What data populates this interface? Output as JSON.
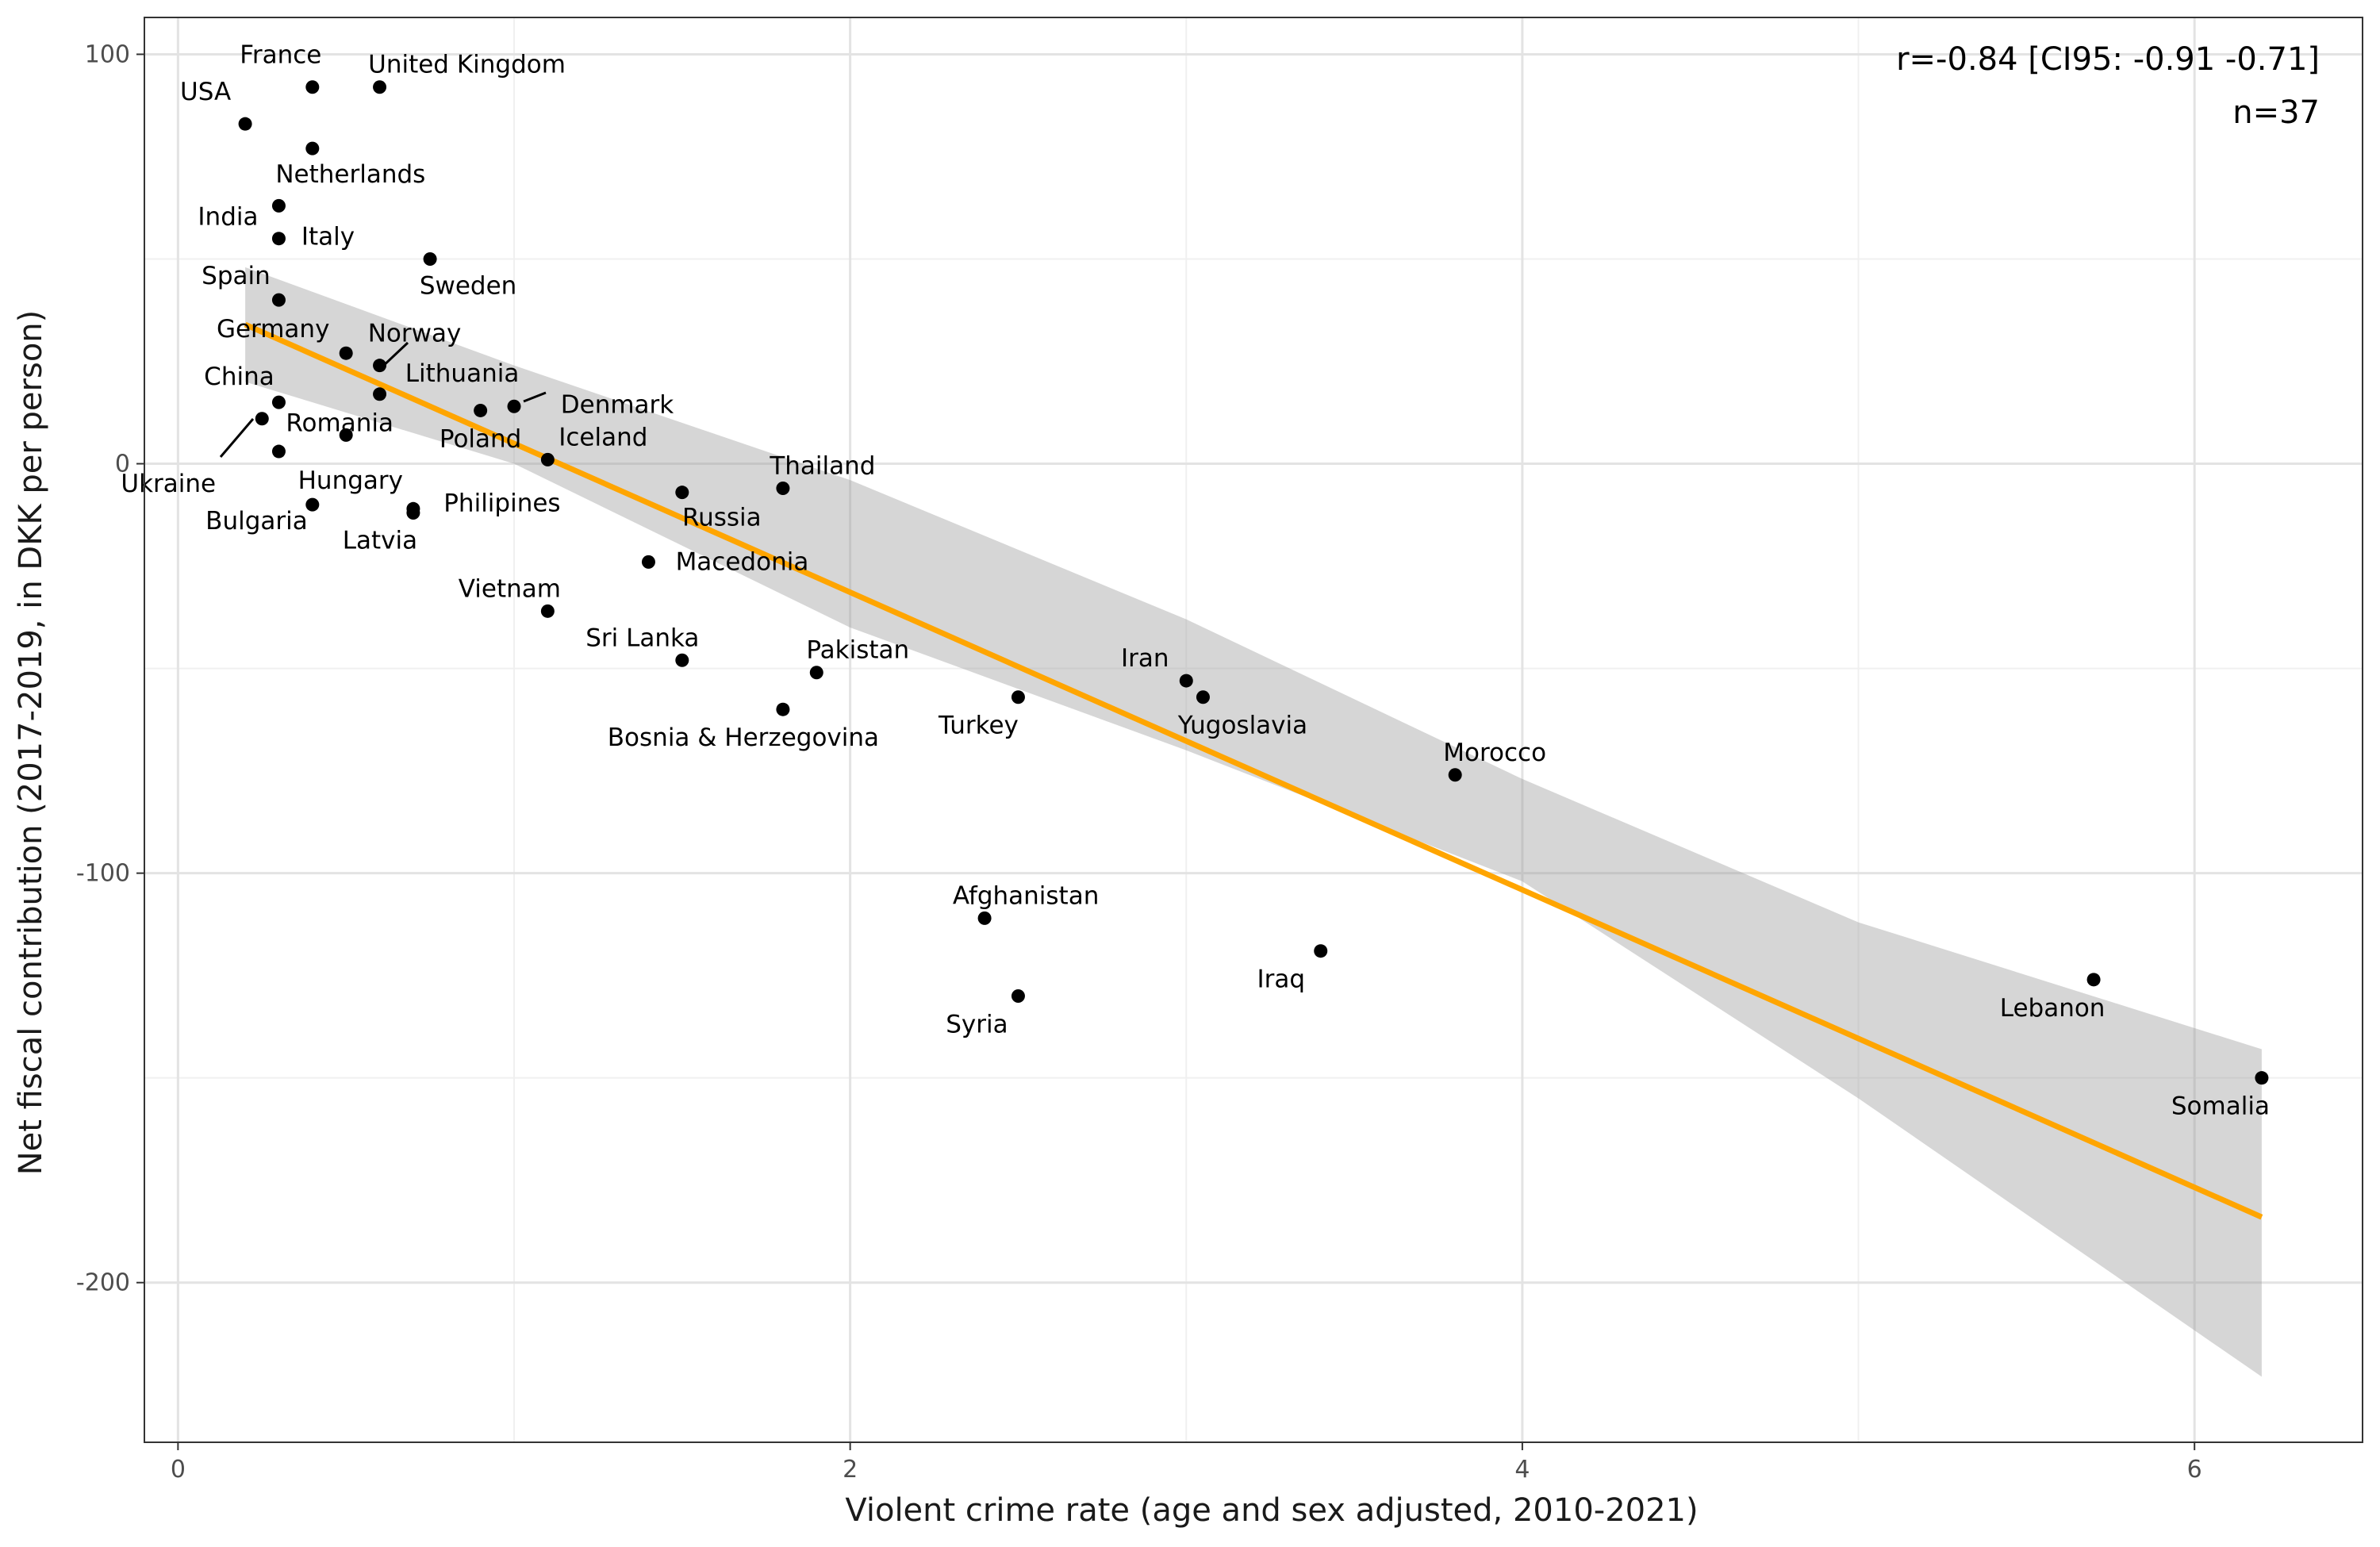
{
  "chart_data": {
    "type": "scatter",
    "xlabel": "Violent crime rate (age and sex adjusted, 2010-2021)",
    "ylabel": "Net fiscal contribution (2017-2019, in DKK per person)",
    "xlim": [
      -0.1,
      6.5
    ],
    "ylim": [
      -239,
      109
    ],
    "x_ticks": [
      0,
      2,
      4,
      6
    ],
    "x_tick_labels": [
      "0",
      "2",
      "4",
      "6"
    ],
    "y_ticks": [
      -200,
      -100,
      0,
      100
    ],
    "y_tick_labels": [
      "-200",
      "-100",
      "0",
      "100"
    ],
    "grid": true,
    "annotation": {
      "correlation": "r=-0.84 [CI95: -0.91 -0.71]",
      "n": "n=37"
    },
    "regression_line": {
      "x": [
        0.2,
        6.2
      ],
      "y": [
        34,
        -184
      ]
    },
    "confidence_band": {
      "x": [
        0.2,
        1.0,
        2.0,
        3.0,
        4.0,
        5.0,
        6.2
      ],
      "upper": [
        48,
        24,
        -4,
        -38,
        -77,
        -112,
        -143
      ],
      "lower": [
        20,
        0,
        -40,
        -70,
        -102,
        -155,
        -223
      ]
    },
    "points": [
      {
        "label": "USA",
        "x": 0.2,
        "y": 83
      },
      {
        "label": "France",
        "x": 0.4,
        "y": 92
      },
      {
        "label": "United Kingdom",
        "x": 0.6,
        "y": 92
      },
      {
        "label": "Netherlands",
        "x": 0.4,
        "y": 77
      },
      {
        "label": "India",
        "x": 0.3,
        "y": 63
      },
      {
        "label": "Italy",
        "x": 0.3,
        "y": 55
      },
      {
        "label": "Sweden",
        "x": 0.75,
        "y": 50
      },
      {
        "label": "Spain",
        "x": 0.3,
        "y": 40
      },
      {
        "label": "Germany",
        "x": 0.5,
        "y": 27
      },
      {
        "label": "Norway",
        "x": 0.6,
        "y": 24
      },
      {
        "label": "China",
        "x": 0.3,
        "y": 15
      },
      {
        "label": "Lithuania",
        "x": 0.6,
        "y": 17
      },
      {
        "label": "Denmark",
        "x": 1.0,
        "y": 14
      },
      {
        "label": "Poland",
        "x": 0.9,
        "y": 13
      },
      {
        "label": "Ukraine",
        "x": 0.25,
        "y": 11
      },
      {
        "label": "Romania",
        "x": 0.5,
        "y": 7
      },
      {
        "label": "Iceland",
        "x": 1.1,
        "y": 1
      },
      {
        "label": "Bulgaria",
        "x": 0.3,
        "y": 3
      },
      {
        "label": "Hungary",
        "x": 0.4,
        "y": -10
      },
      {
        "label": "Philipines",
        "x": 0.7,
        "y": -11
      },
      {
        "label": "Latvia",
        "x": 0.7,
        "y": -12
      },
      {
        "label": "Russia",
        "x": 1.5,
        "y": -7
      },
      {
        "label": "Thailand",
        "x": 1.8,
        "y": -6
      },
      {
        "label": "Macedonia",
        "x": 1.4,
        "y": -24
      },
      {
        "label": "Vietnam",
        "x": 1.1,
        "y": -36
      },
      {
        "label": "Sri Lanka",
        "x": 1.5,
        "y": -48
      },
      {
        "label": "Pakistan",
        "x": 1.9,
        "y": -51
      },
      {
        "label": "Bosnia & Herzegovina",
        "x": 1.8,
        "y": -60
      },
      {
        "label": "Turkey",
        "x": 2.5,
        "y": -57
      },
      {
        "label": "Iran",
        "x": 3.0,
        "y": -53
      },
      {
        "label": "Yugoslavia",
        "x": 3.05,
        "y": -57
      },
      {
        "label": "Morocco",
        "x": 3.8,
        "y": -76
      },
      {
        "label": "Afghanistan",
        "x": 2.4,
        "y": -111
      },
      {
        "label": "Syria",
        "x": 2.5,
        "y": -130
      },
      {
        "label": "Iraq",
        "x": 3.4,
        "y": -119
      },
      {
        "label": "Lebanon",
        "x": 5.7,
        "y": -126
      },
      {
        "label": "Somalia",
        "x": 6.2,
        "y": -150
      }
    ]
  }
}
